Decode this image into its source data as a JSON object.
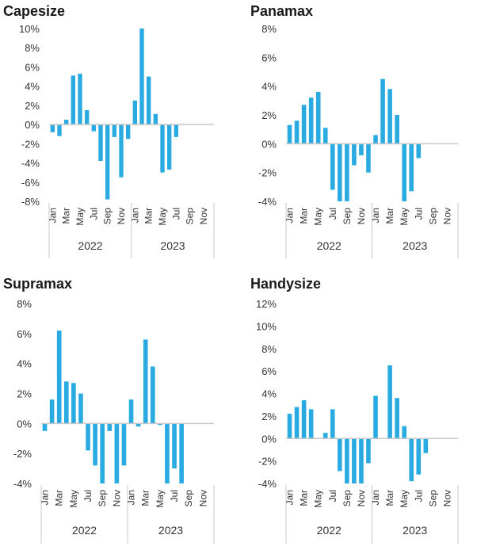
{
  "colors": {
    "bar": "#29ABE2",
    "axis": "#c8c8c8"
  },
  "chart_data": [
    {
      "type": "bar",
      "title": "Capesize",
      "categories": [
        "Jan",
        "Feb",
        "Mar",
        "Apr",
        "May",
        "Jun",
        "Jul",
        "Aug",
        "Sep",
        "Oct",
        "Nov",
        "Dec",
        "Jan",
        "Feb",
        "Mar",
        "Apr",
        "May",
        "Jun",
        "Jul",
        "Aug",
        "Sep",
        "Oct",
        "Nov",
        "Dec"
      ],
      "tick_labels": [
        "Jan",
        "Mar",
        "May",
        "Jul",
        "Sep",
        "Nov",
        "Jan",
        "Mar",
        "May",
        "Jul",
        "Sep",
        "Nov"
      ],
      "groups": [
        "2022",
        "2023"
      ],
      "values": [
        -0.8,
        -1.2,
        0.5,
        5.1,
        5.3,
        1.5,
        -0.7,
        -3.8,
        -7.8,
        -1.3,
        -5.5,
        -1.5,
        2.5,
        10.0,
        5.0,
        1.1,
        -5.0,
        -4.7,
        -1.3,
        null,
        null,
        null,
        null,
        null
      ],
      "ylim": [
        -8,
        10
      ],
      "yticks": [
        "10%",
        "8%",
        "6%",
        "4%",
        "2%",
        "0%",
        "-2%",
        "-4%",
        "-6%",
        "-8%"
      ],
      "ytick_values": [
        10,
        8,
        6,
        4,
        2,
        0,
        -2,
        -4,
        -6,
        -8
      ],
      "legend": false
    },
    {
      "type": "bar",
      "title": "Panamax",
      "categories": [
        "Jan",
        "Feb",
        "Mar",
        "Apr",
        "May",
        "Jun",
        "Jul",
        "Aug",
        "Sep",
        "Oct",
        "Nov",
        "Dec",
        "Jan",
        "Feb",
        "Mar",
        "Apr",
        "May",
        "Jun",
        "Jul",
        "Aug",
        "Sep",
        "Oct",
        "Nov",
        "Dec"
      ],
      "tick_labels": [
        "Jan",
        "Mar",
        "May",
        "Jul",
        "Sep",
        "Nov",
        "Jan",
        "Mar",
        "May",
        "Jul",
        "Sep",
        "Nov"
      ],
      "groups": [
        "2022",
        "2023"
      ],
      "values": [
        1.3,
        1.6,
        2.7,
        3.2,
        3.6,
        1.1,
        -3.2,
        -4.0,
        -4.0,
        -1.5,
        -0.8,
        -2.0,
        0.6,
        4.5,
        3.8,
        2.0,
        -4.0,
        -3.3,
        -1.0,
        null,
        null,
        null,
        null,
        null
      ],
      "ylim": [
        -4,
        8
      ],
      "yticks": [
        "8%",
        "6%",
        "4%",
        "2%",
        "0%",
        "-2%",
        "-4%"
      ],
      "ytick_values": [
        8,
        6,
        4,
        2,
        0,
        -2,
        -4
      ],
      "legend": false
    },
    {
      "type": "bar",
      "title": "Supramax",
      "categories": [
        "Jan",
        "Feb",
        "Mar",
        "Apr",
        "May",
        "Jun",
        "Jul",
        "Aug",
        "Sep",
        "Oct",
        "Nov",
        "Dec",
        "Jan",
        "Feb",
        "Mar",
        "Apr",
        "May",
        "Jun",
        "Jul",
        "Aug",
        "Sep",
        "Oct",
        "Nov",
        "Dec"
      ],
      "tick_labels": [
        "Jan",
        "Mar",
        "May",
        "Jul",
        "Sep",
        "Nov",
        "Jan",
        "Mar",
        "May",
        "Jul",
        "Sep",
        "Nov"
      ],
      "groups": [
        "2022",
        "2023"
      ],
      "values": [
        -0.5,
        1.6,
        6.2,
        2.8,
        2.7,
        2.0,
        -1.8,
        -2.8,
        -4.0,
        -0.5,
        -4.0,
        -2.8,
        1.6,
        -0.2,
        5.6,
        3.8,
        -0.1,
        -4.0,
        -3.0,
        -4.0,
        null,
        null,
        null,
        null
      ],
      "ylim": [
        -4,
        8
      ],
      "yticks": [
        "8%",
        "6%",
        "4%",
        "2%",
        "0%",
        "-2%",
        "-4%"
      ],
      "ytick_values": [
        8,
        6,
        4,
        2,
        0,
        -2,
        -4
      ],
      "legend": false
    },
    {
      "type": "bar",
      "title": "Handysize",
      "categories": [
        "Jan",
        "Feb",
        "Mar",
        "Apr",
        "May",
        "Jun",
        "Jul",
        "Aug",
        "Sep",
        "Oct",
        "Nov",
        "Dec",
        "Jan",
        "Feb",
        "Mar",
        "Apr",
        "May",
        "Jun",
        "Jul",
        "Aug",
        "Sep",
        "Oct",
        "Nov",
        "Dec"
      ],
      "tick_labels": [
        "Jan",
        "Mar",
        "May",
        "Jul",
        "Sep",
        "Nov",
        "Jan",
        "Mar",
        "May",
        "Jul",
        "Sep",
        "Nov"
      ],
      "groups": [
        "2022",
        "2023"
      ],
      "values": [
        2.2,
        2.8,
        3.4,
        2.6,
        null,
        0.5,
        2.6,
        -2.9,
        -4.0,
        -4.0,
        -4.0,
        -2.2,
        3.8,
        null,
        6.5,
        3.6,
        1.1,
        -3.8,
        -3.2,
        -1.3,
        null,
        null,
        null,
        null
      ],
      "ylim": [
        -4,
        12
      ],
      "yticks": [
        "12%",
        "10%",
        "8%",
        "6%",
        "4%",
        "2%",
        "0%",
        "-2%",
        "-4%"
      ],
      "ytick_values": [
        12,
        10,
        8,
        6,
        4,
        2,
        0,
        -2,
        -4
      ],
      "legend": false
    }
  ]
}
